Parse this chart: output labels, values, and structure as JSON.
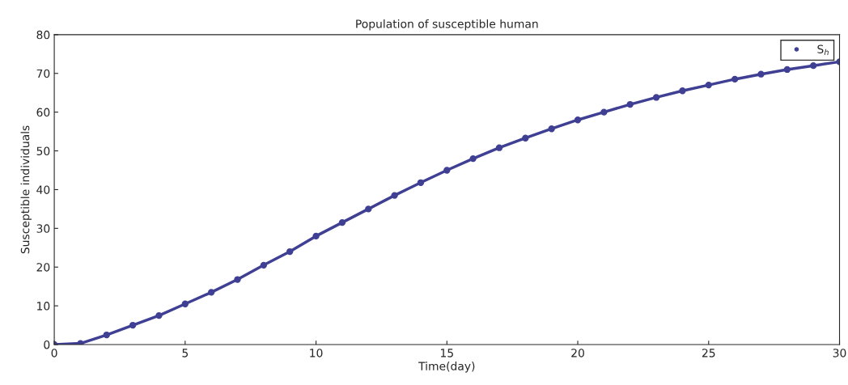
{
  "chart_data": {
    "type": "line",
    "title": "Population of susceptible human",
    "xlabel": "Time(day)",
    "ylabel": "Susceptible individuals",
    "xlim": [
      0,
      30
    ],
    "ylim": [
      0,
      80
    ],
    "xticks": [
      0,
      5,
      10,
      15,
      20,
      25,
      30
    ],
    "yticks": [
      0,
      10,
      20,
      30,
      40,
      50,
      60,
      70,
      80
    ],
    "marker": "circle",
    "legend": "top right",
    "series": [
      {
        "name": "S$_{h}$",
        "color": "#3f3f94",
        "x": [
          0,
          1,
          2,
          3,
          4,
          5,
          6,
          7,
          8,
          9,
          10,
          11,
          12,
          13,
          14,
          15,
          16,
          17,
          18,
          19,
          20,
          21,
          22,
          23,
          24,
          25,
          26,
          27,
          28,
          29,
          30
        ],
        "values": [
          0,
          0.3,
          2.5,
          5,
          7.5,
          10.5,
          13.5,
          16.8,
          20.5,
          24,
          28,
          31.5,
          35,
          38.5,
          41.8,
          45,
          48,
          50.8,
          53.3,
          55.7,
          58,
          60,
          62,
          63.8,
          65.5,
          67,
          68.5,
          69.8,
          71,
          72,
          73
        ]
      }
    ]
  }
}
